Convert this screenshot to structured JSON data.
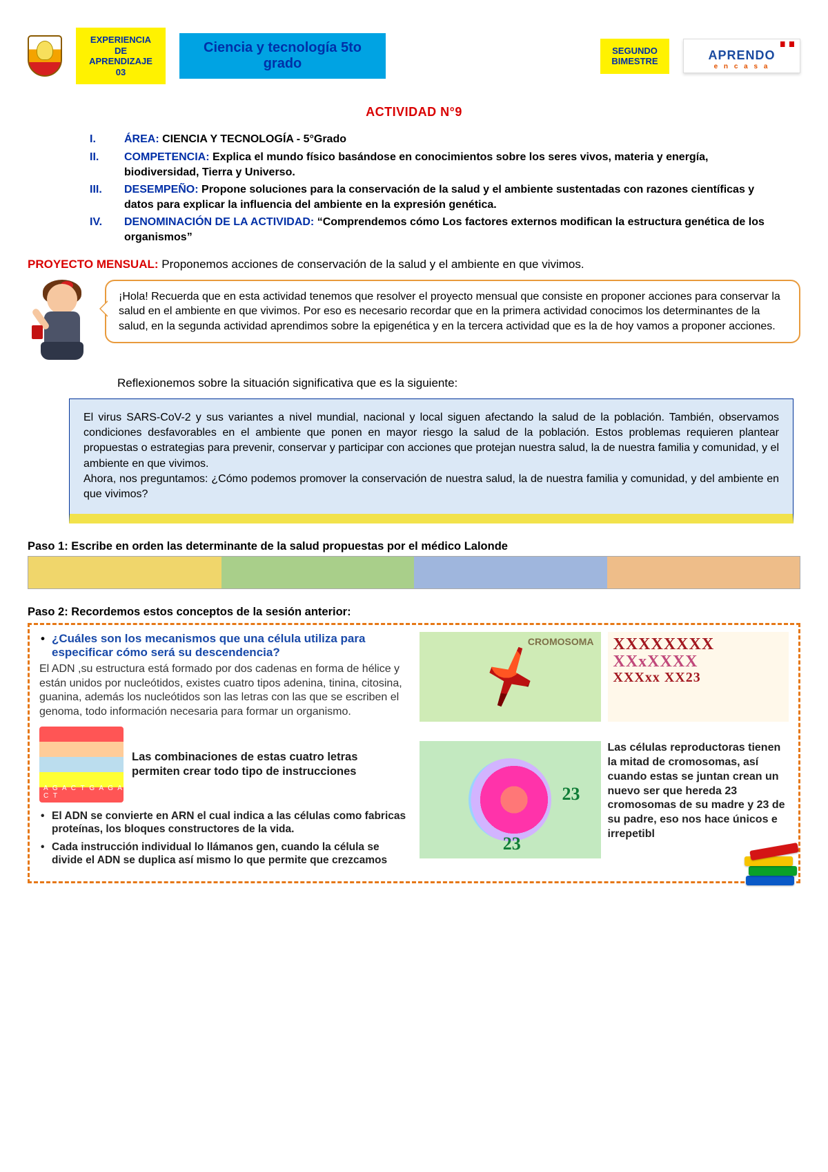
{
  "header": {
    "experiencia": "EXPERIENCIA DE APRENDIZAJE  03",
    "subject": "Ciencia y tecnología 5to grado",
    "bimestre": "SEGUNDO BIMESTRE",
    "brand_main": "APRENDO",
    "brand_sub": "e n  c a s a"
  },
  "activity_title": "ACTIVIDAD N°9",
  "info": {
    "area_num": "I.",
    "area_label": "ÁREA: ",
    "area_text": "CIENCIA Y TECNOLOGÍA - 5°Grado",
    "comp_num": "II.",
    "comp_label": "COMPETENCIA: ",
    "comp_text": "Explica el mundo físico basándose en conocimientos sobre los seres vivos, materia y energía, biodiversidad, Tierra y Universo.",
    "des_num": "III.",
    "des_label": "DESEMPEÑO: ",
    "des_text": "Propone soluciones para la conservación de la salud y el ambiente sustentadas con razones científicas y datos para explicar la influencia del ambiente en la expresión genética.",
    "den_num": "IV.",
    "den_label": "DENOMINACIÓN DE LA ACTIVIDAD: ",
    "den_text": "“Comprendemos cómo Los factores externos modifican la estructura genética de los organismos”"
  },
  "proyecto": {
    "label": "PROYECTO MENSUAL: ",
    "text": "Proponemos acciones de conservación de la salud y el ambiente en que vivimos."
  },
  "speech_text": "¡Hola! Recuerda que en esta actividad tenemos que resolver el proyecto mensual que consiste en proponer acciones para conservar la salud en el ambiente en que vivimos. Por eso es necesario recordar que en la primera actividad conocimos los determinantes de la salud, en la segunda actividad aprendimos sobre la epigenética y en la tercera actividad que es la de hoy vamos a proponer acciones.",
  "reflex": "Reflexionemos sobre la situación significativa que es la siguiente:",
  "context": "El virus SARS-CoV-2 y sus variantes a nivel mundial, nacional y local siguen afectando la salud de la población. También, observamos condiciones desfavorables en el ambiente que ponen en mayor riesgo la salud de la población. Estos problemas requieren plantear propuestas o estrategias para prevenir, conservar y participar con acciones que protejan nuestra salud, la de nuestra familia y comunidad, y el ambiente en que vivimos.\nAhora, nos preguntamos: ¿Cómo podemos promover la conservación de nuestra salud, la de nuestra familia y comunidad, y del ambiente en que vivimos?",
  "paso1_h": "Paso 1: Escribe en orden  las determinante de la salud propuestas por el médico Lalonde",
  "paso1_colors": [
    "#f0d66b",
    "#a9cf8a",
    "#9fb6dd",
    "#eebd89"
  ],
  "paso2_h": "Paso 2: Recordemos estos conceptos de la sesión anterior:",
  "left": {
    "q": "¿Cuáles son los mecanismos que una célula utiliza para especificar cómo será su descendencia?",
    "para": "El ADN ,su estructura está formado por dos cadenas en forma de hélice  y están  unidos por nucleótidos, existes cuatro tipos adenina, tinina, citosina, guanina, además los nucleótidos son las letras con las que se escriben el genoma, todo información necesaria para formar un organismo.",
    "dna_caption": "Las combinaciones de estas cuatro letras permiten crear todo tipo de instrucciones",
    "b1": "El ADN se convierte en ARN el cual indica a las células como fabricas proteínas, los bloques constructores de la vida.",
    "b2": "Cada instrucción individual lo llámanos gen, cuando la célula se divide  el ADN se duplica así mismo lo que permite que crezcamos"
  },
  "right": {
    "chromo_label": "CROMOSOMA",
    "xxx_l1": "XXXXXXXX",
    "xxx_l2": "XXxXXXX",
    "xxx_l3": "XXXxx XX23",
    "n23": "23",
    "repro": "Las células reproductoras tienen la mitad de cromosomas, así cuando estas se juntan crean un nuevo ser que hereda 23 cromosomas de su madre y 23 de su padre, eso nos hace únicos e irrepetibl"
  }
}
